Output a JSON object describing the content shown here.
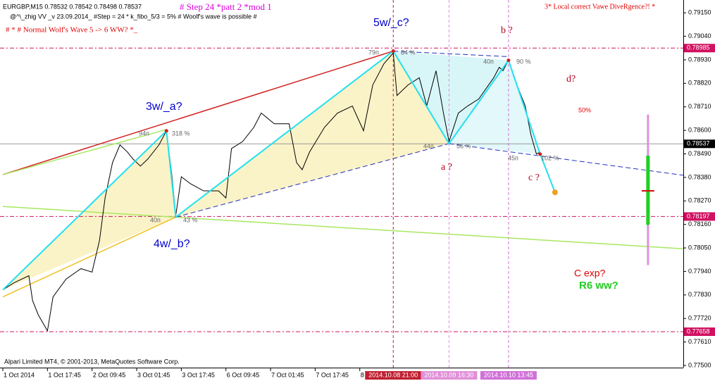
{
  "chart_data": {
    "type": "line",
    "title": "EURGBP,M15  0.78532 0.78542 0.78498 0.78537",
    "footer": "Alpari Limited MT4, © 2001-2013, MetaQuotes Software Corp.",
    "xlim": [
      0,
      366
    ],
    "ylim": [
      0.7749,
      0.7921
    ],
    "xticks": [
      {
        "value": 0,
        "label": "1 Oct 2014"
      },
      {
        "value": 24,
        "label": "1 Oct 17:45"
      },
      {
        "value": 48,
        "label": "2 Oct 09:45"
      },
      {
        "value": 72,
        "label": "3 Oct 01:45"
      },
      {
        "value": 96,
        "label": "3 Oct 17:45"
      },
      {
        "value": 120,
        "label": "6 Oct 09:45"
      },
      {
        "value": 144,
        "label": "7 Oct 01:45"
      },
      {
        "value": 168,
        "label": "7 Oct 17:45"
      },
      {
        "value": 192,
        "label": "8"
      }
    ],
    "yticks": [
      {
        "value": 0.7915,
        "label": "0.79150"
      },
      {
        "value": 0.7904,
        "label": "0.79040"
      },
      {
        "value": 0.7893,
        "label": "0.78930"
      },
      {
        "value": 0.7882,
        "label": "0.78820"
      },
      {
        "value": 0.7871,
        "label": "0.78710"
      },
      {
        "value": 0.786,
        "label": "0.78600"
      },
      {
        "value": 0.7849,
        "label": "0.78490"
      },
      {
        "value": 0.7838,
        "label": "0.78380"
      },
      {
        "value": 0.7827,
        "label": "0.78270"
      },
      {
        "value": 0.7816,
        "label": "0.78160"
      },
      {
        "value": 0.7805,
        "label": "0.78050"
      },
      {
        "value": 0.7794,
        "label": "0.77940"
      },
      {
        "value": 0.7783,
        "label": "0.77830"
      },
      {
        "value": 0.7772,
        "label": "0.77720"
      },
      {
        "value": 0.7761,
        "label": "0.77610"
      },
      {
        "value": 0.775,
        "label": "0.77500"
      }
    ],
    "series": [
      {
        "color": "#000000",
        "x": [
          0,
          6,
          14,
          16,
          19,
          24,
          27,
          34,
          42,
          48,
          52,
          55,
          59,
          63,
          67,
          70,
          74,
          78,
          84,
          88,
          91,
          93,
          96,
          101,
          108,
          116,
          120,
          123,
          129,
          135,
          139,
          146,
          154,
          158,
          161,
          165,
          173,
          180,
          188,
          194,
          199,
          205,
          210,
          212,
          218,
          224,
          228,
          233,
          237,
          240,
          245,
          250,
          256,
          264,
          267,
          269,
          272,
          275,
          281,
          284,
          287,
          289
        ],
        "values": [
          0.77854,
          0.77887,
          0.7792,
          0.77804,
          0.77738,
          0.77662,
          0.77821,
          0.77904,
          0.77953,
          0.77937,
          0.78085,
          0.78284,
          0.78449,
          0.78532,
          0.78499,
          0.78466,
          0.78433,
          0.78466,
          0.78532,
          0.78598,
          0.78383,
          0.78201,
          0.78383,
          0.7835,
          0.78317,
          0.78317,
          0.78284,
          0.78515,
          0.78548,
          0.78614,
          0.78681,
          0.78631,
          0.78631,
          0.78449,
          0.78416,
          0.78499,
          0.78614,
          0.78681,
          0.78714,
          0.78598,
          0.78813,
          0.78912,
          0.78962,
          0.78763,
          0.78813,
          0.78846,
          0.78714,
          0.78879,
          0.78681,
          0.78548,
          0.78681,
          0.78714,
          0.78747,
          0.78846,
          0.78895,
          0.78879,
          0.78928,
          0.78846,
          0.78714,
          0.78581,
          0.78489,
          0.78499
        ]
      },
      {
        "color": "#22e0f0",
        "x": [
          0,
          88,
          93,
          210,
          240,
          272,
          289,
          297
        ],
        "values": [
          0.77854,
          0.78598,
          0.78194,
          0.78971,
          0.78538,
          0.78928,
          0.78489,
          0.7831
        ]
      }
    ],
    "trendlines": [
      {
        "color": "#d02020",
        "dash": false,
        "x": [
          0,
          210
        ],
        "values": [
          0.78393,
          0.78971
        ]
      },
      {
        "color": "#a8e860",
        "dash": false,
        "x": [
          0,
          88
        ],
        "values": [
          0.78393,
          0.78604
        ]
      },
      {
        "color": "#a8e860",
        "dash": false,
        "x": [
          0,
          366
        ],
        "values": [
          0.78244,
          0.78046
        ]
      },
      {
        "color": "#f0c020",
        "dash": false,
        "x": [
          0,
          93
        ],
        "values": [
          0.77821,
          0.78194
        ]
      },
      {
        "color": "#2030c0",
        "dash": true,
        "x": [
          93,
          240
        ],
        "values": [
          0.78194,
          0.78538
        ]
      },
      {
        "color": "#2030c0",
        "dash": true,
        "x": [
          240,
          366
        ],
        "values": [
          0.78538,
          0.7839
        ]
      },
      {
        "color": "#2030c0",
        "dash": true,
        "x": [
          210,
          272
        ],
        "values": [
          0.78971,
          0.78945
        ]
      }
    ],
    "levels": [
      {
        "value": 0.78985,
        "label": "0.78985",
        "color": "#d01060",
        "dash": true
      },
      {
        "value": 0.78537,
        "label": "0.78537",
        "color": "#000000",
        "dash": false
      },
      {
        "value": 0.78197,
        "label": "0.78197",
        "color": "#d01060",
        "dash": true
      },
      {
        "value": 0.77658,
        "label": "0.77658",
        "color": "#d01060",
        "dash": true
      }
    ],
    "vlines": [
      {
        "value": 210,
        "label": "2014.10.08 21:00",
        "color": "#c02030"
      },
      {
        "value": 240,
        "label": "2014.10.09 16:30",
        "color": "#e090d8"
      },
      {
        "value": 272,
        "label": "2014.10.10 13:45",
        "color": "#d070d8"
      }
    ],
    "ranges": [
      {
        "x": 347,
        "color": "#e090e0",
        "values": [
          0.7797,
          0.78674
        ]
      },
      {
        "x": 347,
        "color": "#20d020",
        "values": [
          0.78158,
          0.78482
        ]
      }
    ],
    "ticks": [
      {
        "x": 347,
        "color": "#d01010",
        "value": 0.78317
      }
    ],
    "annotations": [
      {
        "text": "# Step 24  *patt 2  *mod 1",
        "color": "#e000e0"
      },
      {
        "text": "@^\\_zhig VV  _v 23.09.2014_ #Step = 24   * k_fibo_5/3 = 5%   # Woolf's wave is possible #",
        "color": "#000000"
      },
      {
        "text": "# * #  Normal   Wolf's Wave 5 -> 6 WW? *_",
        "color": "#e00000"
      },
      {
        "text": "3* Local correct Vawe DiveRgence?! *",
        "color": "#e00000"
      },
      {
        "text": "5w/_c?",
        "color": "#0000cc"
      },
      {
        "text": "b ?",
        "color": "#b00020"
      },
      {
        "text": "3w/_a?",
        "color": "#0000cc"
      },
      {
        "text": "4w/_b?",
        "color": "#0000cc"
      },
      {
        "text": "a ?",
        "color": "#b00020"
      },
      {
        "text": "c ?",
        "color": "#b00020"
      },
      {
        "text": "d?",
        "color": "#b00020"
      },
      {
        "text": "50%",
        "color": "#e00000"
      },
      {
        "text": "C exp?",
        "color": "#e00000"
      },
      {
        "text": "R6 ww?",
        "color": "#22cc22"
      },
      {
        "text": "79п",
        "color": "#666666"
      },
      {
        "text": "84 %",
        "color": "#666666"
      },
      {
        "text": "94п",
        "color": "#666666"
      },
      {
        "text": "318 %",
        "color": "#666666"
      },
      {
        "text": "40п",
        "color": "#666666"
      },
      {
        "text": "43 %",
        "color": "#666666"
      },
      {
        "text": "40п",
        "color": "#666666"
      },
      {
        "text": "90 %",
        "color": "#666666"
      },
      {
        "text": "44п",
        "color": "#666666"
      },
      {
        "text": "56 %",
        "color": "#666666"
      },
      {
        "text": "45п",
        "color": "#666666"
      },
      {
        "text": "102 %",
        "color": "#666666"
      }
    ]
  }
}
